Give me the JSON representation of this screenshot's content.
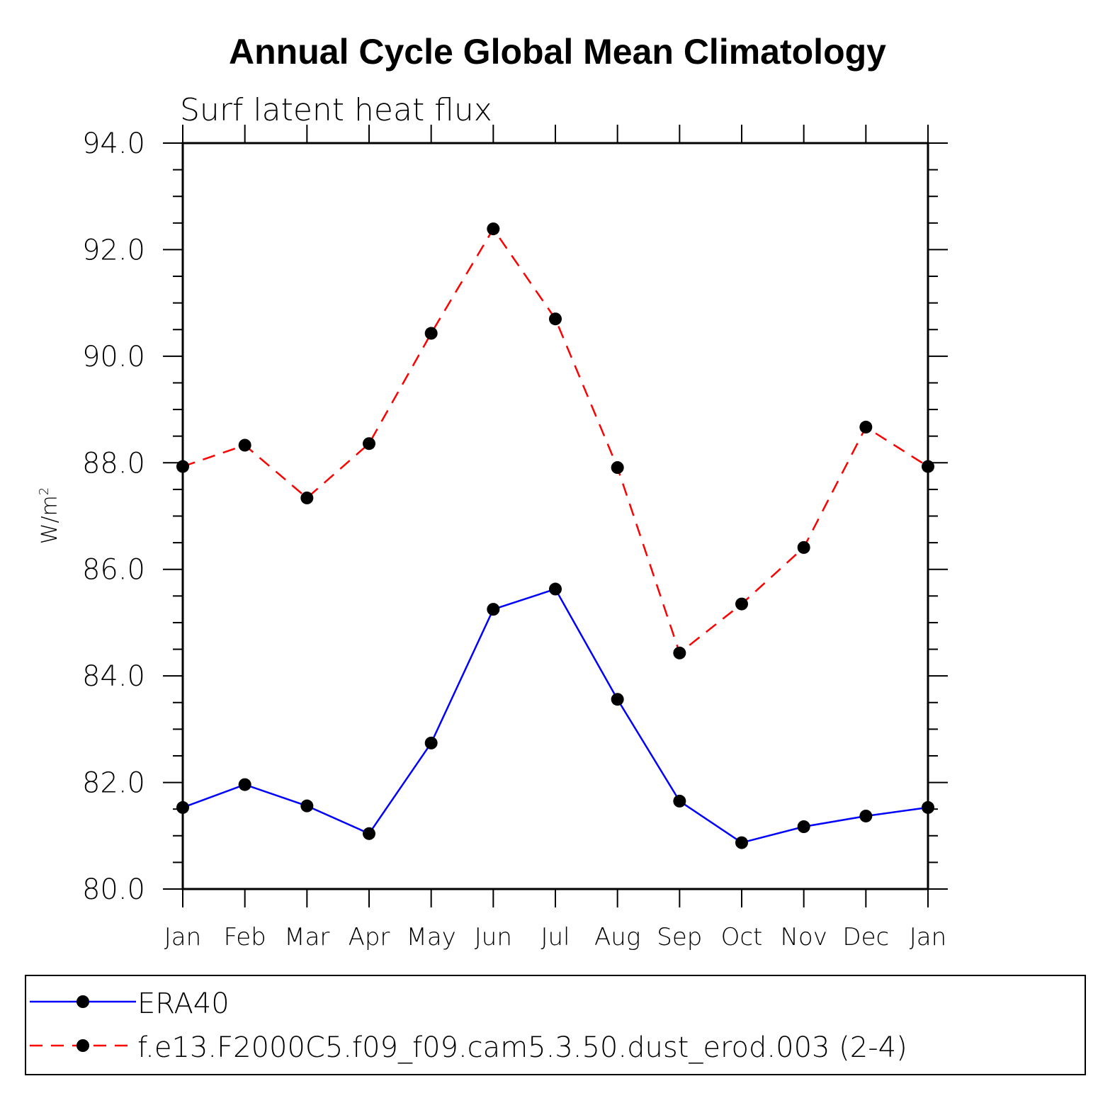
{
  "chart_data": {
    "type": "line",
    "title": "Annual Cycle Global Mean Climatology",
    "subtitle": "Surf latent heat flux",
    "ylabel": "W/m",
    "ylabel_superscript": "2",
    "xlabel": "",
    "categories": [
      "Jan",
      "Feb",
      "Mar",
      "Apr",
      "May",
      "Jun",
      "Jul",
      "Aug",
      "Sep",
      "Oct",
      "Nov",
      "Dec",
      "Jan"
    ],
    "ylim": [
      80,
      94
    ],
    "yticks": [
      "80.0",
      "82.0",
      "84.0",
      "86.0",
      "88.0",
      "90.0",
      "92.0",
      "94.0"
    ],
    "series": [
      {
        "name": "ERA40",
        "color": "#0000ff",
        "line_style": "solid",
        "marker": "filled-circle",
        "values": [
          81.53,
          81.96,
          81.56,
          81.04,
          82.74,
          85.25,
          85.63,
          83.56,
          81.65,
          80.87,
          81.17,
          81.37,
          81.53
        ]
      },
      {
        "name": "f.e13.F2000C5.f09_f09.cam5.3.50.dust_erod.003 (2-4)",
        "color": "#ff0000",
        "line_style": "dashed",
        "marker": "filled-circle",
        "values": [
          87.93,
          88.33,
          87.34,
          88.36,
          90.43,
          92.39,
          90.7,
          87.91,
          84.43,
          85.35,
          86.41,
          88.67,
          87.93
        ]
      }
    ],
    "legend_position": "bottom"
  }
}
